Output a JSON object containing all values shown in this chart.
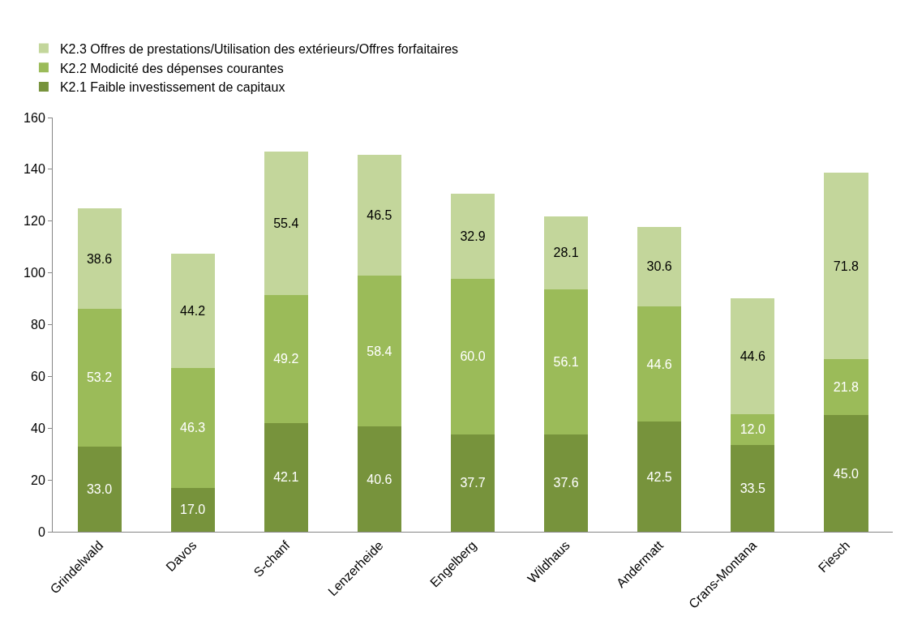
{
  "chart_data": {
    "type": "bar",
    "stacked": true,
    "categories": [
      "Grindelwald",
      "Davos",
      "S-chanf",
      "Lenzerheide",
      "Engelberg",
      "Wildhaus",
      "Andermatt",
      "Crans-Montana",
      "Fiesch"
    ],
    "series": [
      {
        "name": "K2.1 Faible investissement de capitaux",
        "color": "#77933c",
        "values": [
          33.0,
          17.0,
          42.1,
          40.6,
          37.7,
          37.6,
          42.5,
          33.5,
          45.0
        ],
        "value_labels": [
          "33.0",
          "17.0",
          "42.1",
          "40.6",
          "37.7",
          "37.6",
          "42.5",
          "33.5",
          "45.0"
        ]
      },
      {
        "name": "K2.2 Modicité des dépenses courantes",
        "color": "#9bbb59",
        "values": [
          53.2,
          46.3,
          49.2,
          58.4,
          60.0,
          56.1,
          44.6,
          12.0,
          21.8
        ],
        "value_labels": [
          "53.2",
          "46.3",
          "49.2",
          "58.4",
          "60.0",
          "56.1",
          "44.6",
          "12.0",
          "21.8"
        ]
      },
      {
        "name": "K2.3 Offres de prestations/Utilisation des extérieurs/Offres forfaitaires",
        "color": "#c3d69b",
        "values": [
          38.6,
          44.2,
          55.4,
          46.5,
          32.9,
          28.1,
          30.6,
          44.6,
          71.8
        ],
        "value_labels": [
          "38.6",
          "44.2",
          "55.4",
          "46.5",
          "32.9",
          "28.1",
          "30.6",
          "44.6",
          "71.8"
        ]
      }
    ],
    "ylim": [
      0,
      160
    ],
    "yticks": [
      0,
      20,
      40,
      60,
      80,
      100,
      120,
      140,
      160
    ],
    "legend": "top left"
  }
}
